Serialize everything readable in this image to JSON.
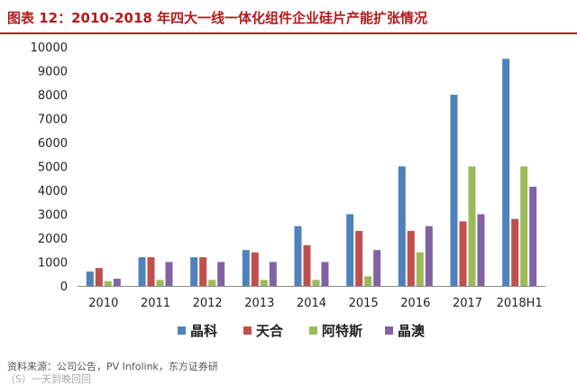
{
  "header": {
    "title": "图表 12：2010-2018 年四大一线一体化组件企业硅片产能扩张情况"
  },
  "footer": {
    "source": "资料来源：公司公告，PV Infolink，东方证券研",
    "watermark": "（S）一天到晚回回"
  },
  "chart_data": {
    "type": "bar",
    "categories": [
      "2010",
      "2011",
      "2012",
      "2013",
      "2014",
      "2015",
      "2016",
      "2017",
      "2018H1"
    ],
    "series": [
      {
        "name": "晶科",
        "color": "#4f81bd",
        "values": [
          600,
          1200,
          1200,
          1500,
          2500,
          3000,
          5000,
          8000,
          9500
        ]
      },
      {
        "name": "天合",
        "color": "#c0504d",
        "values": [
          750,
          1200,
          1200,
          1400,
          1700,
          2300,
          2300,
          2700,
          2800
        ]
      },
      {
        "name": "阿特斯",
        "color": "#9bbb59",
        "values": [
          200,
          250,
          250,
          250,
          250,
          400,
          1400,
          5000,
          5000
        ]
      },
      {
        "name": "晶澳",
        "color": "#8064a2",
        "values": [
          300,
          1000,
          1000,
          1000,
          1000,
          1500,
          2500,
          3000,
          4150
        ]
      }
    ],
    "yticks": [
      "0",
      "1000",
      "2000",
      "3000",
      "4000",
      "5000",
      "6000",
      "7000",
      "8000",
      "9000",
      "10000"
    ],
    "ylim": [
      0,
      10000
    ],
    "grid": false,
    "legend": "bottom"
  }
}
